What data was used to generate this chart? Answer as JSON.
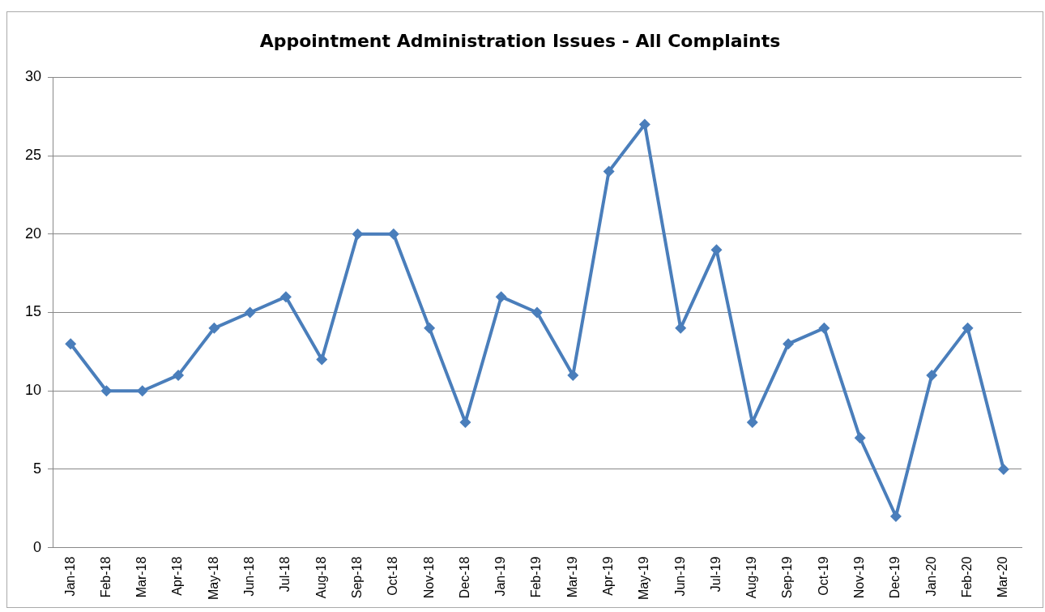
{
  "chart_data": {
    "type": "line",
    "title": "Appointment Administration Issues - All Complaints",
    "categories": [
      "Jan-18",
      "Feb-18",
      "Mar-18",
      "Apr-18",
      "May-18",
      "Jun-18",
      "Jul-18",
      "Aug-18",
      "Sep-18",
      "Oct-18",
      "Nov-18",
      "Dec-18",
      "Jan-19",
      "Feb-19",
      "Mar-19",
      "Apr-19",
      "May-19",
      "Jun-19",
      "Jul-19",
      "Aug-19",
      "Sep-19",
      "Oct-19",
      "Nov-19",
      "Dec-19",
      "Jan-20",
      "Feb-20",
      "Mar-20"
    ],
    "series": [
      {
        "color": "#4a7ebb",
        "values": [
          13,
          10,
          10,
          11,
          14,
          15,
          16,
          12,
          20,
          20,
          14,
          8,
          16,
          15,
          11,
          24,
          27,
          14,
          19,
          8,
          13,
          14,
          7,
          2,
          11,
          14,
          5
        ]
      }
    ],
    "ylim": [
      0,
      30
    ],
    "yticks": [
      0,
      5,
      10,
      15,
      20,
      25,
      30
    ],
    "grid": "y",
    "legend": false,
    "marker": "diamond",
    "line_style": "solid"
  }
}
